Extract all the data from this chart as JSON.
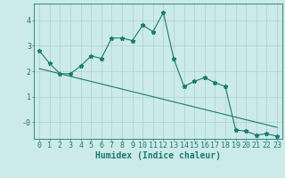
{
  "xlabel": "Humidex (Indice chaleur)",
  "bg_color": "#cceaea",
  "grid_color": "#aacfcf",
  "line_color": "#1a7a6e",
  "x_data": [
    0,
    1,
    2,
    3,
    4,
    5,
    6,
    7,
    8,
    9,
    10,
    11,
    12,
    13,
    14,
    15,
    16,
    17,
    18,
    19,
    20,
    21,
    22,
    23
  ],
  "y_main": [
    2.8,
    2.3,
    1.9,
    1.9,
    2.2,
    2.6,
    2.5,
    3.3,
    3.3,
    3.2,
    3.8,
    3.55,
    4.3,
    2.5,
    1.4,
    1.6,
    1.75,
    1.55,
    1.4,
    -0.3,
    -0.35,
    -0.5,
    -0.45,
    -0.55
  ],
  "y_trend": [
    2.1,
    2.0,
    1.9,
    1.8,
    1.7,
    1.6,
    1.5,
    1.4,
    1.3,
    1.2,
    1.1,
    1.0,
    0.9,
    0.8,
    0.7,
    0.6,
    0.5,
    0.4,
    0.3,
    0.2,
    0.1,
    0.0,
    -0.1,
    -0.2
  ],
  "ylim": [
    -0.65,
    4.65
  ],
  "ytick_vals": [
    4,
    3,
    2,
    1,
    0
  ],
  "ytick_labels": [
    "4",
    "3",
    "2",
    "1",
    "-0"
  ],
  "xlim": [
    -0.5,
    23.5
  ],
  "figsize": [
    3.2,
    2.0
  ],
  "dpi": 100,
  "label_fontsize": 7,
  "tick_fontsize": 6
}
